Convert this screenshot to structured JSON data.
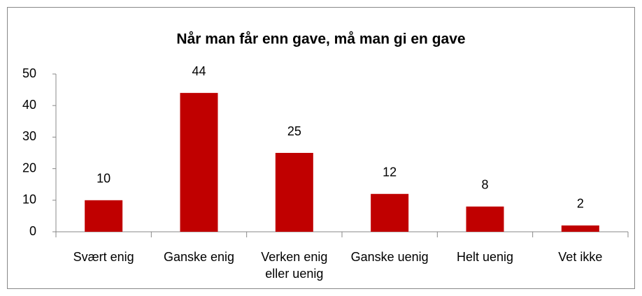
{
  "chart_data": {
    "type": "bar",
    "title": "Når man får enn gave, må man gi en gave",
    "categories": [
      "Svært enig",
      "Ganske enig",
      "Verken enig eller uenig",
      "Ganske uenig",
      "Helt uenig",
      "Vet ikke"
    ],
    "values": [
      10,
      44,
      25,
      12,
      8,
      2
    ],
    "color": "#c00000",
    "ylim": [
      0,
      50
    ],
    "yticks": [
      0,
      10,
      20,
      30,
      40,
      50
    ],
    "grid": false
  }
}
